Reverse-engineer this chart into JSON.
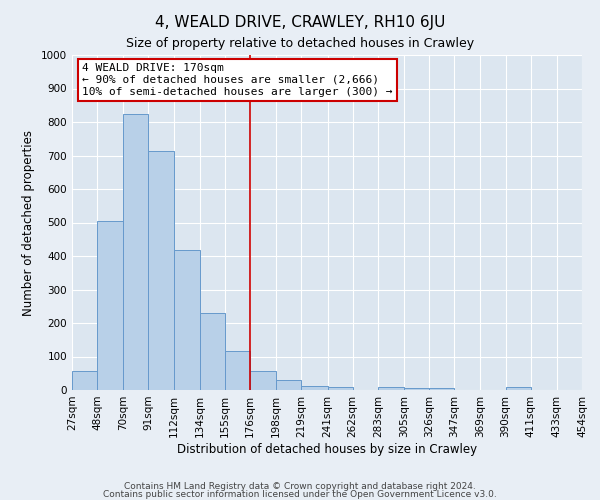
{
  "title": "4, WEALD DRIVE, CRAWLEY, RH10 6JU",
  "subtitle": "Size of property relative to detached houses in Crawley",
  "xlabel": "Distribution of detached houses by size in Crawley",
  "ylabel": "Number of detached properties",
  "bar_edges": [
    27,
    48,
    70,
    91,
    112,
    134,
    155,
    176,
    198,
    219,
    241,
    262,
    283,
    305,
    326,
    347,
    369,
    390,
    411,
    433,
    454
  ],
  "bar_heights": [
    57,
    503,
    825,
    712,
    417,
    230,
    117,
    57,
    30,
    13,
    10,
    0,
    10,
    5,
    5,
    0,
    0,
    10,
    0,
    0
  ],
  "bar_color": "#b8d0e8",
  "bar_edge_color": "#6699cc",
  "vline_x": 176,
  "vline_color": "#cc0000",
  "ylim": [
    0,
    1000
  ],
  "yticks": [
    0,
    100,
    200,
    300,
    400,
    500,
    600,
    700,
    800,
    900,
    1000
  ],
  "tick_labels": [
    "27sqm",
    "48sqm",
    "70sqm",
    "91sqm",
    "112sqm",
    "134sqm",
    "155sqm",
    "176sqm",
    "198sqm",
    "219sqm",
    "241sqm",
    "262sqm",
    "283sqm",
    "305sqm",
    "326sqm",
    "347sqm",
    "369sqm",
    "390sqm",
    "411sqm",
    "433sqm",
    "454sqm"
  ],
  "annotation_title": "4 WEALD DRIVE: 170sqm",
  "annotation_line1": "← 90% of detached houses are smaller (2,666)",
  "annotation_line2": "10% of semi-detached houses are larger (300) →",
  "annotation_box_color": "#ffffff",
  "annotation_box_edge_color": "#cc0000",
  "footer1": "Contains HM Land Registry data © Crown copyright and database right 2024.",
  "footer2": "Contains public sector information licensed under the Open Government Licence v3.0.",
  "background_color": "#e8eef5",
  "plot_bg_color": "#dce6f0",
  "title_fontsize": 11,
  "subtitle_fontsize": 9,
  "xlabel_fontsize": 8.5,
  "ylabel_fontsize": 8.5,
  "tick_fontsize": 7.5,
  "annot_fontsize": 8,
  "footer_fontsize": 6.5
}
